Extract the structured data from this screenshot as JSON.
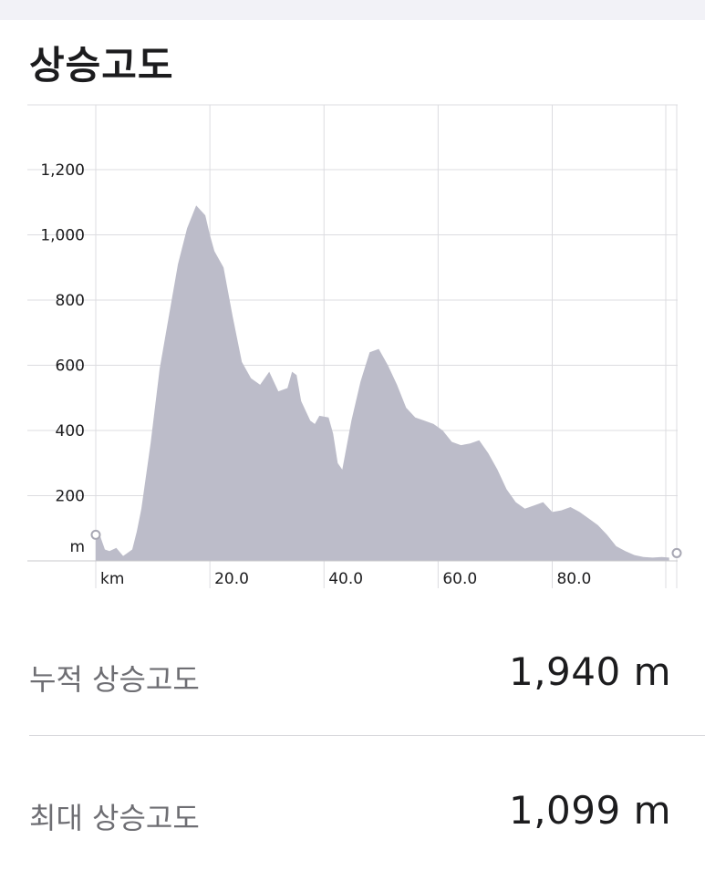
{
  "title": "상승고도",
  "chart_data": {
    "type": "area",
    "xlabel": "km",
    "ylabel": "m",
    "xlim": [
      0,
      101.5
    ],
    "ylim": [
      0,
      1400
    ],
    "x_ticks": [
      20,
      40,
      60,
      80
    ],
    "x_tick_labels": [
      "20.0",
      "40.0",
      "60.0",
      "80.0"
    ],
    "y_ticks": [
      200,
      400,
      600,
      800,
      1000,
      1200
    ],
    "y_tick_labels": [
      "200",
      "400",
      "600",
      "800",
      "1,000",
      "1,200"
    ],
    "grid": true,
    "fill_color": "#bcbcc9",
    "x": [
      0,
      0.8,
      1.6,
      2.4,
      3.6,
      4.8,
      5.6,
      6.4,
      7.2,
      8.0,
      9.6,
      11.2,
      12.8,
      14.4,
      16.0,
      17.6,
      19.2,
      20.0,
      20.8,
      22.4,
      24.0,
      25.6,
      27.2,
      28.8,
      30.4,
      32.0,
      33.6,
      34.4,
      35.2,
      36.0,
      37.6,
      38.4,
      39.2,
      40.8,
      41.6,
      42.4,
      43.2,
      44.8,
      46.4,
      48.0,
      49.6,
      51.2,
      52.8,
      54.4,
      56.0,
      57.6,
      59.2,
      60.8,
      62.4,
      64.0,
      65.6,
      67.2,
      68.8,
      70.4,
      72.0,
      73.6,
      75.2,
      76.8,
      78.4,
      80.0,
      81.6,
      83.2,
      84.8,
      86.4,
      88.0,
      89.6,
      91.2,
      92.8,
      94.4,
      96.0,
      97.6,
      99.2,
      100.5
    ],
    "y": [
      80,
      75,
      35,
      30,
      40,
      15,
      25,
      35,
      90,
      160,
      360,
      590,
      750,
      910,
      1020,
      1090,
      1060,
      1000,
      950,
      900,
      750,
      610,
      560,
      540,
      580,
      520,
      530,
      580,
      570,
      490,
      430,
      420,
      445,
      440,
      390,
      300,
      280,
      430,
      550,
      640,
      650,
      600,
      540,
      470,
      440,
      430,
      420,
      400,
      365,
      355,
      360,
      370,
      330,
      280,
      220,
      180,
      160,
      170,
      180,
      150,
      155,
      165,
      150,
      130,
      110,
      80,
      45,
      30,
      18,
      12,
      10,
      12,
      10
    ]
  },
  "stats": {
    "total_label": "누적 상승고도",
    "total_value": "1,940 m",
    "max_label": "최대 상승고도",
    "max_value": "1,099 m"
  }
}
